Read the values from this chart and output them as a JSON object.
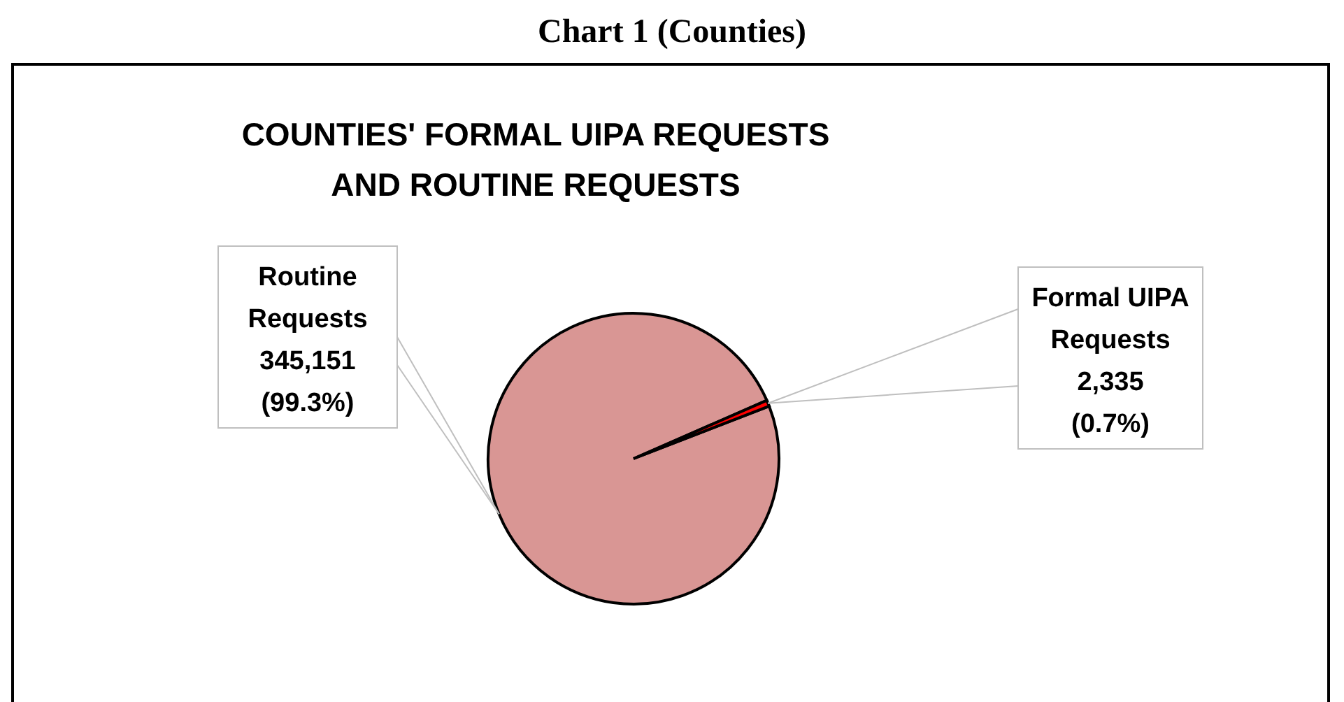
{
  "chart_data": {
    "type": "pie",
    "title": "Chart 1 (Counties)",
    "subtitle": "COUNTIES' FORMAL UIPA REQUESTS AND ROUTINE REQUESTS",
    "categories": [
      "Routine Requests",
      "Formal UIPA Requests"
    ],
    "values": [
      345151,
      2335
    ],
    "colors": [
      "#d99694",
      "#ff0000"
    ],
    "value_labels": [
      "345,151 (99.3%)",
      "2,335 (0.7%)"
    ]
  }
}
